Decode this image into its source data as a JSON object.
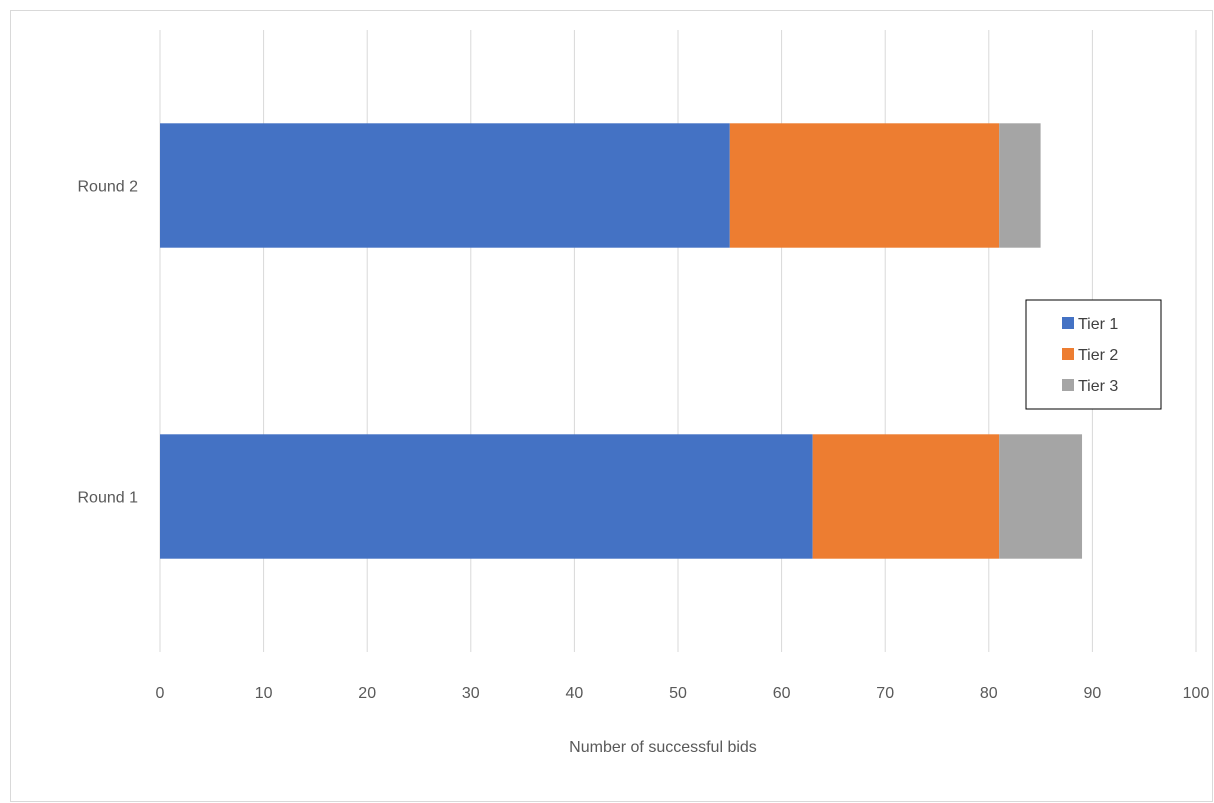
{
  "chart_data": {
    "type": "bar",
    "orientation": "horizontal",
    "stacked": true,
    "categories": [
      "Round 1",
      "Round 2"
    ],
    "series": [
      {
        "name": "Tier 1",
        "values": [
          63,
          55
        ],
        "color": "#4472c4"
      },
      {
        "name": "Tier 2",
        "values": [
          18,
          26
        ],
        "color": "#ed7d31"
      },
      {
        "name": "Tier 3",
        "values": [
          8,
          4
        ],
        "color": "#a5a5a5"
      }
    ],
    "xticks": [
      "0",
      "10",
      "20",
      "30",
      "40",
      "50",
      "60",
      "70",
      "80",
      "90",
      "100"
    ],
    "xlim": [
      0,
      100
    ],
    "xlabel": "Number of successful bids",
    "ylabel": "",
    "title": "",
    "grid": "vertical",
    "legend_position": "right"
  }
}
